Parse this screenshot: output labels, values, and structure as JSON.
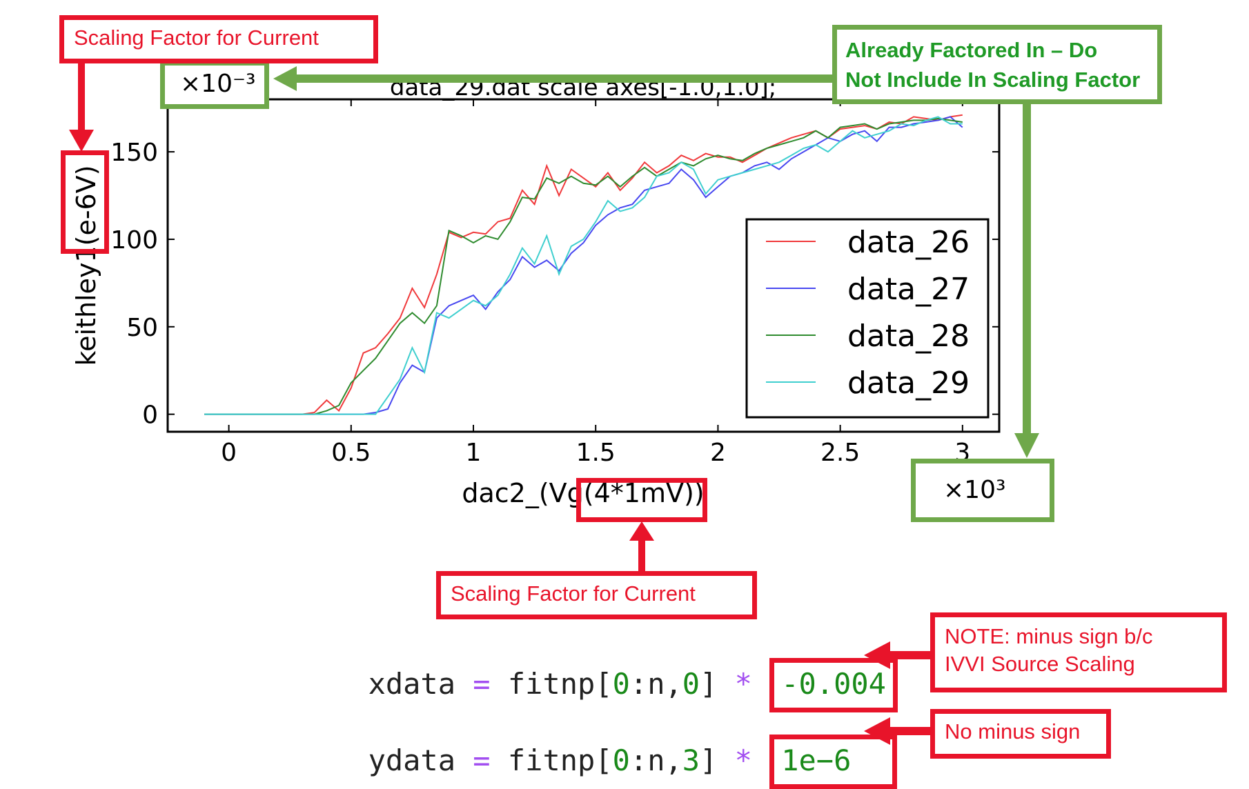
{
  "chart_data": {
    "type": "line",
    "title": "data_29.dat scale axes[-1.0,1.0];",
    "xlabel": "dac2_(Vg(4*1mV))",
    "ylabel": "keithley1(e-6V)",
    "x_multiplier": "×10³",
    "y_multiplier": "×10⁻³",
    "xlim": [
      -0.25,
      3.15
    ],
    "ylim": [
      -10,
      180
    ],
    "xticks": [
      "0",
      "0.5",
      "1",
      "1.5",
      "2",
      "2.5",
      "3"
    ],
    "xtick_values": [
      0,
      0.5,
      1,
      1.5,
      2,
      2.5,
      3
    ],
    "yticks": [
      "0",
      "50",
      "100",
      "150"
    ],
    "ytick_values": [
      0,
      50,
      100,
      150
    ],
    "legend_placement": "lower-right",
    "x": [
      -0.1,
      0.3,
      0.35,
      0.4,
      0.45,
      0.5,
      0.55,
      0.6,
      0.65,
      0.7,
      0.75,
      0.8,
      0.85,
      0.9,
      0.95,
      1.0,
      1.05,
      1.1,
      1.15,
      1.2,
      1.25,
      1.3,
      1.35,
      1.4,
      1.45,
      1.5,
      1.55,
      1.6,
      1.65,
      1.7,
      1.75,
      1.8,
      1.85,
      1.9,
      1.95,
      2.0,
      2.05,
      2.1,
      2.15,
      2.2,
      2.25,
      2.3,
      2.35,
      2.4,
      2.45,
      2.5,
      2.55,
      2.6,
      2.65,
      2.7,
      2.75,
      2.8,
      2.85,
      2.9,
      2.95,
      3.0
    ],
    "series": [
      {
        "name": "data_26",
        "color": "#f0393b",
        "values": [
          0,
          0,
          1,
          8,
          2,
          15,
          35,
          38,
          46,
          55,
          72,
          61,
          80,
          104,
          101,
          104,
          103,
          110,
          112,
          128,
          120,
          142,
          125,
          140,
          135,
          130,
          138,
          128,
          135,
          144,
          138,
          142,
          148,
          145,
          149,
          147,
          147,
          144,
          148,
          152,
          155,
          158,
          160,
          162,
          158,
          163,
          164,
          165,
          163,
          167,
          166,
          170,
          169,
          168,
          170,
          171
        ]
      },
      {
        "name": "data_27",
        "color": "#4747f0",
        "values": [
          0,
          0,
          0,
          0,
          0,
          0,
          0,
          1,
          3,
          18,
          28,
          24,
          55,
          62,
          65,
          68,
          60,
          70,
          77,
          90,
          84,
          88,
          82,
          92,
          98,
          108,
          114,
          118,
          120,
          128,
          130,
          132,
          140,
          134,
          124,
          130,
          136,
          138,
          142,
          144,
          140,
          146,
          150,
          154,
          158,
          156,
          160,
          162,
          156,
          164,
          164,
          166,
          167,
          168,
          170,
          164
        ]
      },
      {
        "name": "data_28",
        "color": "#2e8b2e",
        "values": [
          0,
          0,
          0,
          2,
          5,
          18,
          25,
          32,
          42,
          52,
          58,
          52,
          62,
          105,
          102,
          98,
          102,
          100,
          110,
          124,
          123,
          135,
          132,
          136,
          132,
          131,
          136,
          130,
          136,
          141,
          136,
          140,
          144,
          142,
          146,
          148,
          146,
          145,
          149,
          152,
          154,
          156,
          158,
          162,
          158,
          164,
          165,
          166,
          163,
          166,
          167,
          168,
          168,
          169,
          168,
          167
        ]
      },
      {
        "name": "data_29",
        "color": "#3fcfcf",
        "values": [
          0,
          0,
          0,
          0,
          0,
          0,
          0,
          0,
          10,
          20,
          38,
          24,
          58,
          55,
          60,
          65,
          62,
          68,
          80,
          95,
          86,
          102,
          80,
          96,
          100,
          110,
          122,
          116,
          118,
          124,
          136,
          138,
          144,
          140,
          126,
          134,
          136,
          138,
          140,
          142,
          144,
          148,
          152,
          154,
          150,
          156,
          162,
          158,
          160,
          162,
          166,
          165,
          168,
          170,
          166,
          166
        ]
      }
    ]
  },
  "annotations": {
    "scaling_top": "Scaling Factor for Current",
    "scaling_bottom": "Scaling Factor for Current",
    "already_line1": "Already Factored In – Do",
    "already_line2": "Not Include In Scaling Factor",
    "note_line1": "NOTE: minus sign b/c",
    "note_line2": "IVVI Source Scaling",
    "no_minus": "No minus sign"
  },
  "code": {
    "line1": {
      "var": "xdata ",
      "op1": "=",
      "mid": " fitnp[",
      "n0": "0",
      "c": ":n,",
      "n1": "0",
      "end": "] ",
      "op2": "*",
      "factor": "-0.004"
    },
    "line2": {
      "var": "ydata ",
      "op1": "=",
      "mid": " fitnp[",
      "n0": "0",
      "c": ":n,",
      "n1": "3",
      "end": "] ",
      "op2": "*",
      "factor": "1e−6"
    }
  },
  "colors": {
    "annotation_red": "#e8142a",
    "annotation_green": "#6fa84a",
    "green_text": "#1f9a26"
  }
}
